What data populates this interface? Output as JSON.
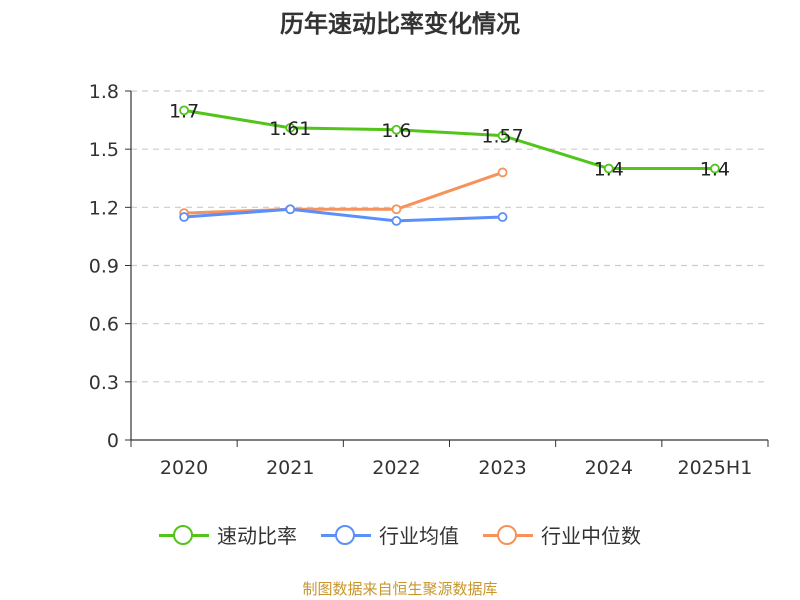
{
  "title": "历年速动比率变化情况",
  "source": "制图数据来自恒生聚源数据库",
  "chart_data": {
    "type": "line",
    "categories": [
      "2020",
      "2021",
      "2022",
      "2023",
      "2024",
      "2025H1"
    ],
    "ylim": [
      0,
      1.8
    ],
    "yticks": [
      0,
      0.3,
      0.6,
      0.9,
      1.2,
      1.5,
      1.8
    ],
    "ytick_labels": [
      "0",
      "0.3",
      "0.6",
      "0.9",
      "1.2",
      "1.5",
      "1.8"
    ],
    "grid": true,
    "legend_position": "bottom",
    "series": [
      {
        "name": "速动比率",
        "color": "#52c41a",
        "values": [
          1.7,
          1.61,
          1.6,
          1.57,
          1.4,
          1.4
        ],
        "labels": [
          "1.7",
          "1.61",
          "1.6",
          "1.57",
          "1.4",
          "1.4"
        ]
      },
      {
        "name": "行业均值",
        "color": "#5b8ff9",
        "values": [
          1.15,
          1.19,
          1.13,
          1.15,
          null,
          null
        ]
      },
      {
        "name": "行业中位数",
        "color": "#f6925a",
        "values": [
          1.17,
          1.19,
          1.19,
          1.38,
          null,
          null
        ]
      }
    ]
  }
}
